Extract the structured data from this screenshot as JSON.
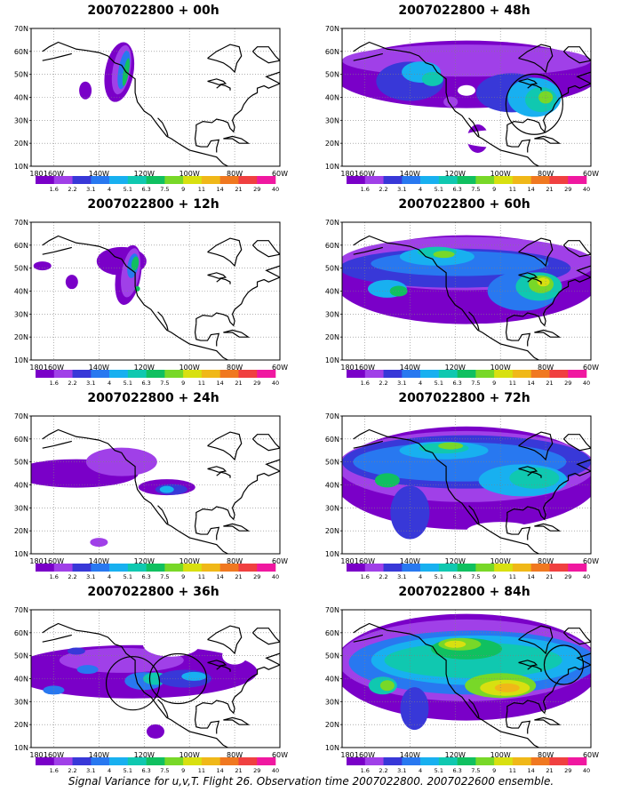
{
  "caption": "Signal Variance for u,v,T. Flight 26. Observation time 2007022800. 2007022600 ensemble.",
  "lat_labels": [
    "70N",
    "60N",
    "50N",
    "40N",
    "30N",
    "20N",
    "10N"
  ],
  "lon_labels": [
    "180",
    "160W",
    "140W",
    "120W",
    "100W",
    "80W",
    "60W"
  ],
  "legend_labels": [
    "1.6",
    "2.2",
    "3.1",
    "4",
    "5.1",
    "6.3",
    "7.5",
    "9",
    "11",
    "14",
    "21",
    "29",
    "40"
  ],
  "palette": [
    "#7a00c8",
    "#a040e8",
    "#3838d8",
    "#2878f0",
    "#18b0f0",
    "#10c8b0",
    "#10c060",
    "#78d828",
    "#d8e010",
    "#f0b818",
    "#f07820",
    "#f04040",
    "#f018a0"
  ],
  "coast_color": "#000000",
  "panels": [
    {
      "title": "2007022800 + 00h"
    },
    {
      "title": "2007022800 + 48h"
    },
    {
      "title": "2007022800 + 12h"
    },
    {
      "title": "2007022800 + 60h"
    },
    {
      "title": "2007022800 + 24h"
    },
    {
      "title": "2007022800 + 72h"
    },
    {
      "title": "2007022800 + 36h"
    },
    {
      "title": "2007022800 + 84h"
    }
  ]
}
